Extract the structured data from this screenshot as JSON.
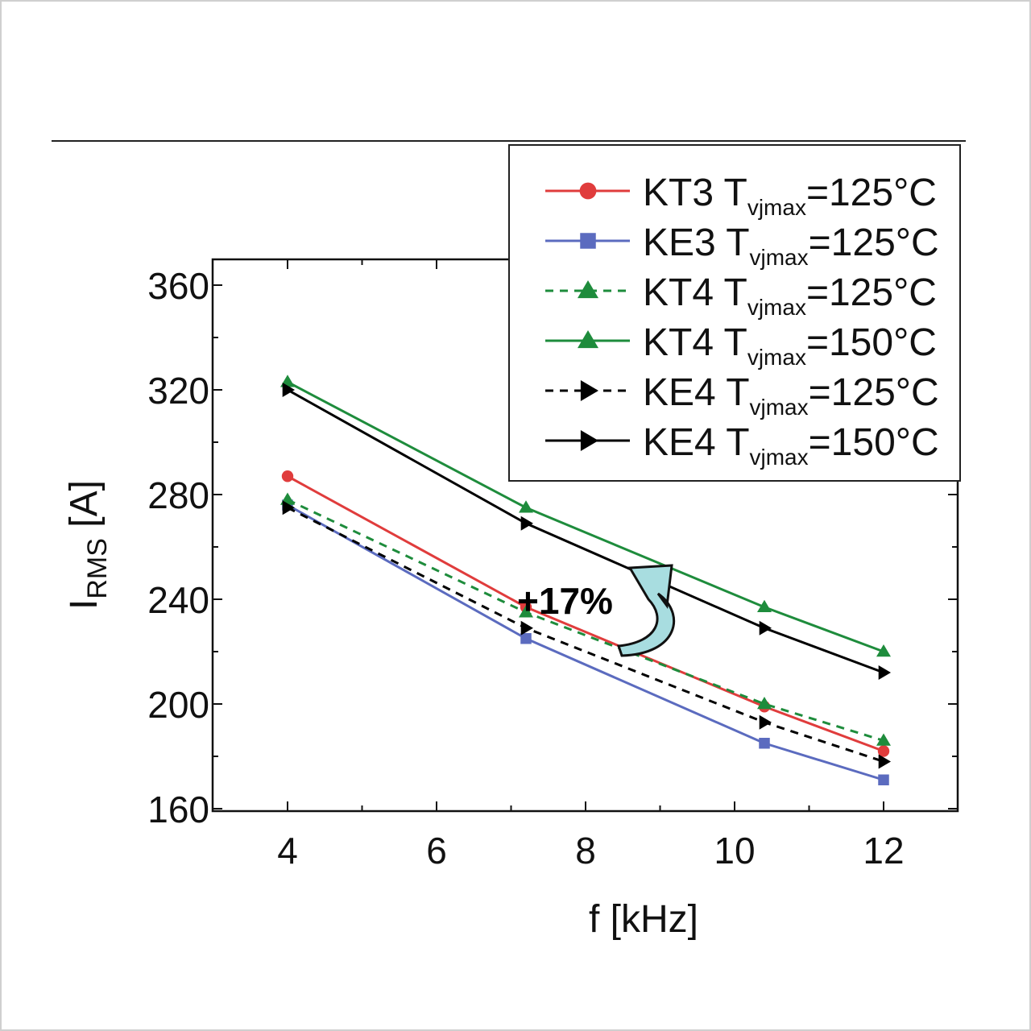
{
  "chart_data": {
    "type": "line",
    "xlabel": "f [kHz]",
    "ylabel_main": "I",
    "ylabel_sub": "RMS",
    "ylabel_unit": " [A]",
    "xlim": [
      3,
      13
    ],
    "ylim": [
      160,
      370
    ],
    "xticks": [
      4,
      6,
      8,
      10,
      12
    ],
    "yticks": [
      160,
      200,
      240,
      280,
      320,
      360
    ],
    "grid": false,
    "legend_placement": "top-right",
    "annotation": "+17%",
    "x": [
      4,
      7.2,
      10.4,
      12
    ],
    "series": [
      {
        "name": "KT3",
        "sub": "vjmax",
        "temp": "=125°C",
        "color": "#e03c3c",
        "marker": "circle",
        "dash": false,
        "values": [
          287,
          237,
          199,
          182
        ]
      },
      {
        "name": "KE3",
        "sub": "vjmax",
        "temp": "=125°C",
        "color": "#5b6bbf",
        "marker": "square",
        "dash": false,
        "values": [
          276,
          225,
          185,
          171
        ]
      },
      {
        "name": "KT4",
        "sub": "vjmax",
        "temp": "=125°C",
        "color": "#1e8c3c",
        "marker": "triangle-up",
        "dash": true,
        "values": [
          278,
          235,
          200,
          186
        ]
      },
      {
        "name": "KT4",
        "sub": "vjmax",
        "temp": "=150°C",
        "color": "#1e8c3c",
        "marker": "triangle-up",
        "dash": false,
        "values": [
          323,
          275,
          237,
          220
        ]
      },
      {
        "name": "KE4",
        "sub": "vjmax",
        "temp": "=125°C",
        "color": "#000000",
        "marker": "triangle-right",
        "dash": true,
        "values": [
          275,
          229,
          193,
          178
        ]
      },
      {
        "name": "KE4",
        "sub": "vjmax",
        "temp": "=150°C",
        "color": "#000000",
        "marker": "triangle-right",
        "dash": false,
        "values": [
          320,
          269,
          229,
          212
        ]
      }
    ]
  }
}
